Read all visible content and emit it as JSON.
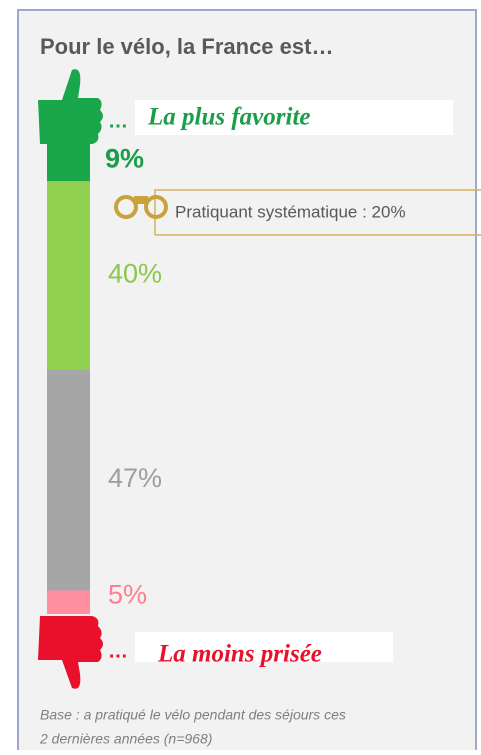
{
  "chart_data": {
    "type": "stacked_bar",
    "title": "Pour le vélo, la France est…",
    "top_label": {
      "prefix": "…",
      "text": "La plus favorite"
    },
    "bottom_label": {
      "prefix": "…",
      "text": "La moins prisée"
    },
    "annotation": "Pratiquant systématique : 20%",
    "values": [
      9,
      40,
      47,
      5
    ],
    "value_labels": [
      "9%",
      "40%",
      "47%",
      "5%"
    ],
    "colors": [
      "#1aa64b",
      "#92d050",
      "#a6a6a6",
      "#ff8fa0"
    ],
    "label_colors": [
      "#1a9e48",
      "#8cc84b",
      "#9e9e9e",
      "#ff7f90"
    ],
    "footnote": [
      "Base : a pratiqué le vélo pendant des séjours ces",
      "2 dernières années (n=968)"
    ]
  }
}
